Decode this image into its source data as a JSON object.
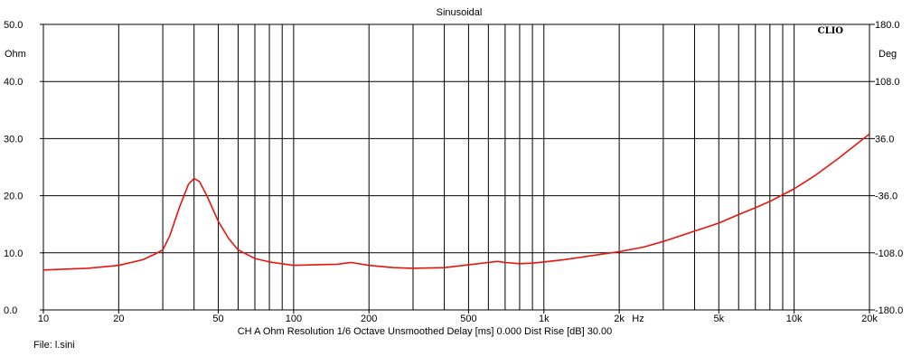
{
  "chart_data": {
    "type": "line",
    "title": "Sinusoidal",
    "brand": "CLIO",
    "x_scale": "log",
    "xlim": [
      10,
      20000
    ],
    "ylim_left": [
      0,
      50
    ],
    "ylim_right": [
      -180,
      180
    ],
    "left_unit": "Ohm",
    "right_unit": "Deg",
    "x_unit": "Hz",
    "grid": true,
    "x_ticks": [
      {
        "v": 10,
        "label": "10"
      },
      {
        "v": 20,
        "label": "20"
      },
      {
        "v": 50,
        "label": "50"
      },
      {
        "v": 100,
        "label": "100"
      },
      {
        "v": 200,
        "label": "200"
      },
      {
        "v": 500,
        "label": "500"
      },
      {
        "v": 1000,
        "label": "1k"
      },
      {
        "v": 2000,
        "label": "2k"
      },
      {
        "v": 5000,
        "label": "5k"
      },
      {
        "v": 10000,
        "label": "10k"
      },
      {
        "v": 20000,
        "label": "20k"
      }
    ],
    "x_gridlines": [
      20,
      30,
      40,
      50,
      60,
      70,
      80,
      90,
      100,
      200,
      300,
      400,
      500,
      600,
      700,
      800,
      900,
      1000,
      2000,
      3000,
      4000,
      5000,
      6000,
      7000,
      8000,
      9000,
      10000
    ],
    "y_left_ticks": [
      {
        "v": 0,
        "label": "0.0"
      },
      {
        "v": 10,
        "label": "10.0"
      },
      {
        "v": 20,
        "label": "20.0"
      },
      {
        "v": 30,
        "label": "30.0"
      },
      {
        "v": 40,
        "label": "40.0"
      },
      {
        "v": 50,
        "label": "50.0"
      }
    ],
    "y_right_ticks": [
      {
        "v": -180,
        "label": "-180.0"
      },
      {
        "v": -108,
        "label": "-108.0"
      },
      {
        "v": -36,
        "label": "-36.0"
      },
      {
        "v": 36,
        "label": "36.0"
      },
      {
        "v": 108,
        "label": "108.0"
      },
      {
        "v": 180,
        "label": "180.0"
      }
    ],
    "series": [
      {
        "color": "#e8140c",
        "x": [
          10,
          15,
          20,
          25,
          28,
          30,
          32,
          35,
          38,
          40,
          42,
          45,
          50,
          55,
          60,
          70,
          80,
          100,
          120,
          150,
          170,
          200,
          250,
          300,
          400,
          500,
          600,
          650,
          700,
          800,
          900,
          1000,
          1200,
          1500,
          2000,
          2500,
          3000,
          4000,
          5000,
          6000,
          7000,
          8000,
          10000,
          12000,
          15000,
          20000
        ],
        "y": [
          7.0,
          7.3,
          7.8,
          8.8,
          9.8,
          10.5,
          13.0,
          18.0,
          22.0,
          23.0,
          22.5,
          20.0,
          15.5,
          12.5,
          10.5,
          9.0,
          8.4,
          7.8,
          7.9,
          8.0,
          8.3,
          7.8,
          7.4,
          7.3,
          7.4,
          7.9,
          8.3,
          8.5,
          8.3,
          8.1,
          8.2,
          8.4,
          8.8,
          9.4,
          10.2,
          11.0,
          12.0,
          13.8,
          15.2,
          16.7,
          17.9,
          19.0,
          21.2,
          23.4,
          26.5,
          30.8
        ]
      }
    ]
  },
  "footer": {
    "line1": "CH A   Ohm   Resolution 1/6 Octave   Unsmoothed   Delay [ms] 0.000   Dist Rise [dB] 30.00",
    "file": "File: l.sini"
  }
}
